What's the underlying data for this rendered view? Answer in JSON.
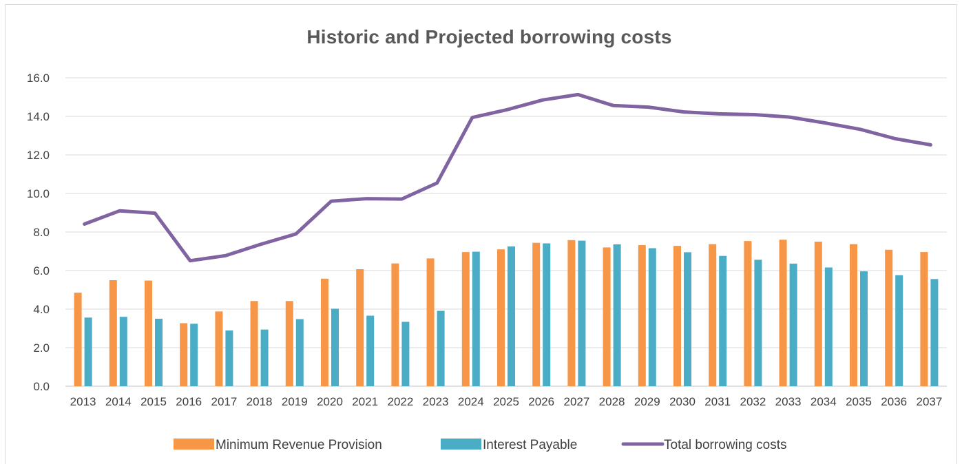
{
  "chart_data": {
    "type": "bar",
    "title": "Historic and Projected borrowing costs",
    "xlabel": "",
    "ylabel": "",
    "ylim": [
      0,
      16
    ],
    "yticks": [
      "0.0",
      "2.0",
      "4.0",
      "6.0",
      "8.0",
      "10.0",
      "12.0",
      "14.0",
      "16.0"
    ],
    "grid": true,
    "legend_position": "bottom",
    "categories": [
      "2013",
      "2014",
      "2015",
      "2016",
      "2017",
      "2018",
      "2019",
      "2020",
      "2021",
      "2022",
      "2023",
      "2024",
      "2025",
      "2026",
      "2027",
      "2028",
      "2029",
      "2030",
      "2031",
      "2032",
      "2033",
      "2034",
      "2035",
      "2036",
      "2037"
    ],
    "series": [
      {
        "name": "Minimum Revenue Provision",
        "kind": "bar",
        "color": "#f79646",
        "values": [
          4.85,
          5.5,
          5.48,
          3.27,
          3.88,
          4.42,
          4.42,
          5.58,
          6.07,
          6.37,
          6.63,
          6.96,
          7.1,
          7.44,
          7.58,
          7.2,
          7.32,
          7.28,
          7.37,
          7.53,
          7.6,
          7.5,
          7.37,
          7.08,
          6.96
        ]
      },
      {
        "name": "Interest Payable",
        "kind": "bar",
        "color": "#4bacc6",
        "values": [
          3.56,
          3.6,
          3.5,
          3.24,
          2.89,
          2.94,
          3.48,
          4.02,
          3.66,
          3.34,
          3.91,
          6.98,
          7.25,
          7.41,
          7.55,
          7.36,
          7.16,
          6.95,
          6.76,
          6.56,
          6.36,
          6.16,
          5.96,
          5.76,
          5.56
        ]
      },
      {
        "name": "Total borrowing costs",
        "kind": "line",
        "color": "#8064a2",
        "values": [
          8.41,
          9.1,
          8.98,
          6.51,
          6.77,
          7.36,
          7.9,
          9.6,
          9.73,
          9.71,
          10.54,
          13.94,
          14.35,
          14.85,
          15.13,
          14.56,
          14.48,
          14.23,
          14.13,
          14.09,
          13.96,
          13.66,
          13.33,
          12.84,
          12.52
        ]
      }
    ]
  }
}
